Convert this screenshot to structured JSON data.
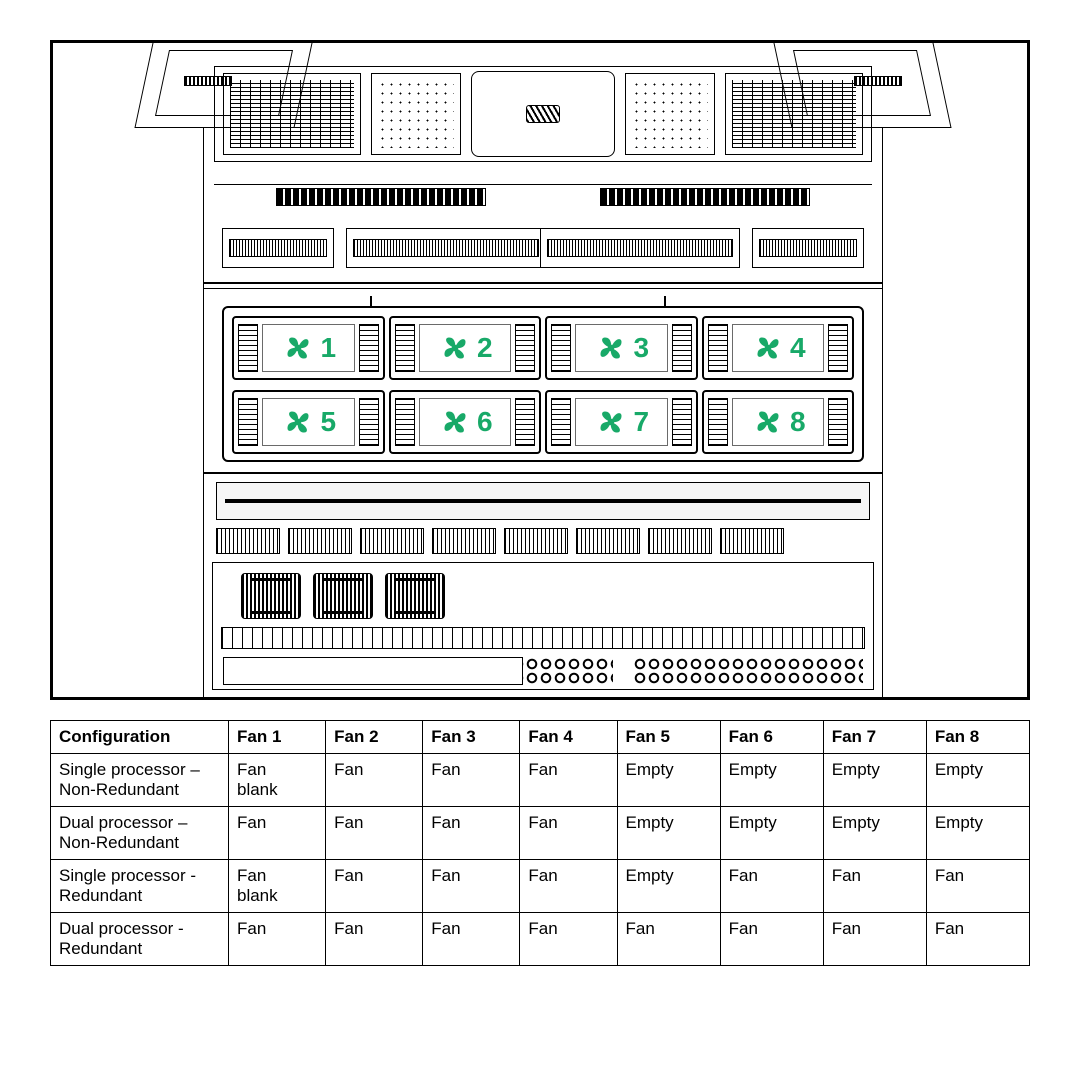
{
  "diagram": {
    "fan_color": "#18a968",
    "fan_number_color": "#18a968",
    "fans": [
      {
        "id": 1,
        "label": "1"
      },
      {
        "id": 2,
        "label": "2"
      },
      {
        "id": 3,
        "label": "3"
      },
      {
        "id": 4,
        "label": "4"
      },
      {
        "id": 5,
        "label": "5"
      },
      {
        "id": 6,
        "label": "6"
      },
      {
        "id": 7,
        "label": "7"
      },
      {
        "id": 8,
        "label": "8"
      }
    ]
  },
  "table": {
    "columns": [
      "Configuration",
      "Fan 1",
      "Fan 2",
      "Fan 3",
      "Fan 4",
      "Fan 5",
      "Fan 6",
      "Fan 7",
      "Fan 8"
    ],
    "rows": [
      {
        "config_line1": "Single processor –",
        "config_line2": "Non-Redundant",
        "cells": [
          "Fan blank",
          "Fan",
          "Fan",
          "Fan",
          "Empty",
          "Empty",
          "Empty",
          "Empty"
        ]
      },
      {
        "config_line1": "Dual processor –",
        "config_line2": "Non-Redundant",
        "cells": [
          "Fan",
          "Fan",
          "Fan",
          "Fan",
          "Empty",
          "Empty",
          "Empty",
          "Empty"
        ]
      },
      {
        "config_line1": "Single processor -",
        "config_line2": "Redundant",
        "cells": [
          "Fan blank",
          "Fan",
          "Fan",
          "Fan",
          "Empty",
          "Fan",
          "Fan",
          "Fan"
        ]
      },
      {
        "config_line1": "Dual processor -",
        "config_line2": "Redundant",
        "cells": [
          "Fan",
          "Fan",
          "Fan",
          "Fan",
          "Fan",
          "Fan",
          "Fan",
          "Fan"
        ]
      }
    ]
  }
}
